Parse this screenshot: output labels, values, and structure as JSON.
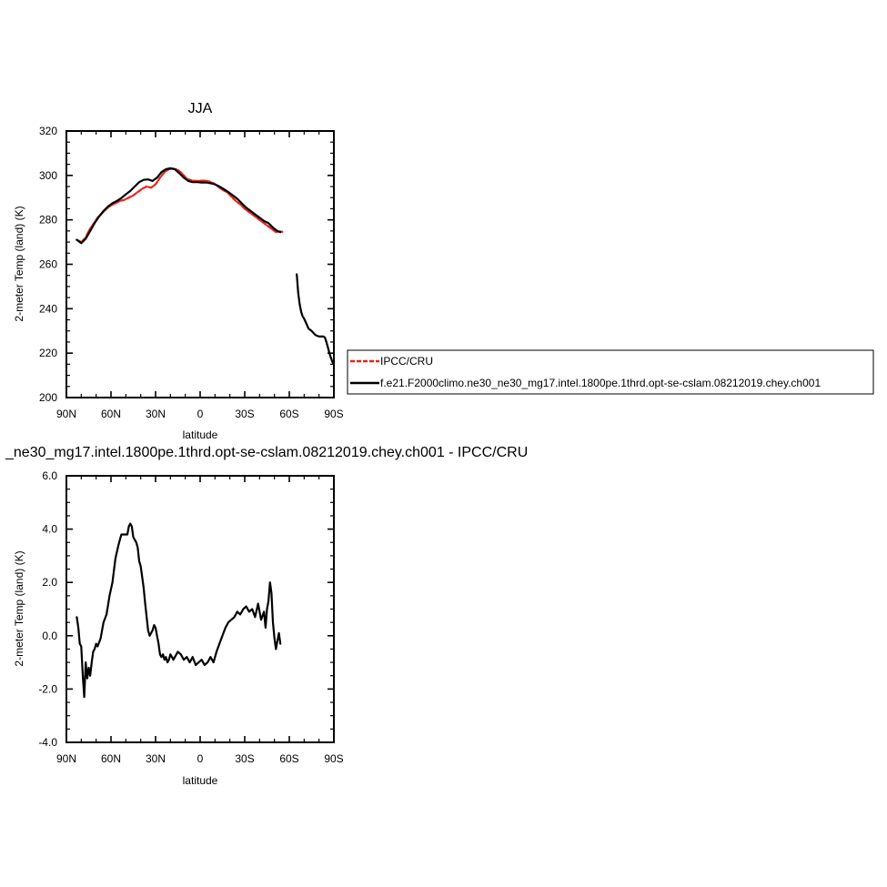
{
  "chart_data": [
    {
      "type": "line",
      "title": "JJA",
      "xlabel": "latitude",
      "ylabel": "2-meter Temp (land) (K)",
      "xlim": [
        90,
        -90
      ],
      "ylim": [
        200,
        320
      ],
      "x_ticks": [
        90,
        60,
        30,
        0,
        -30,
        -60,
        -90
      ],
      "x_tick_labels": [
        "90N",
        "60N",
        "30N",
        "0",
        "30S",
        "60S",
        "90S"
      ],
      "y_ticks": [
        200,
        220,
        240,
        260,
        280,
        300,
        320
      ],
      "y_tick_labels": [
        "200",
        "220",
        "240",
        "260",
        "280",
        "300",
        "320"
      ],
      "legend_position": "right",
      "grid": false,
      "series": [
        {
          "name": "IPCC/CRU",
          "color": "#e8221b",
          "dash": "dashed",
          "x": [
            83,
            80,
            77,
            75,
            72,
            69,
            66,
            63,
            60,
            57,
            54,
            51,
            48,
            45,
            42,
            39,
            36,
            33,
            30,
            27,
            24,
            21,
            18,
            15,
            12,
            9,
            6,
            3,
            0,
            -3,
            -6,
            -9,
            -12,
            -15,
            -18,
            -21,
            -24,
            -27,
            -30,
            -33,
            -36,
            -39,
            -42,
            -45,
            -48,
            -51,
            -54,
            -56
          ],
          "values": [
            271,
            270,
            272,
            275,
            278,
            281,
            283,
            285,
            286.5,
            287.5,
            288.5,
            289,
            290,
            291,
            292.5,
            294,
            295,
            294.5,
            296,
            299,
            301.5,
            302.8,
            303,
            302.5,
            300.8,
            298.5,
            297.8,
            297.5,
            297.6,
            297.7,
            297.3,
            296.5,
            295,
            293.5,
            292.5,
            290.5,
            288.5,
            287,
            285,
            283.5,
            282,
            280.5,
            279,
            277.5,
            276,
            274.5,
            274.8,
            274.5
          ]
        },
        {
          "name": "f.e21.F2000climo.ne30_ne30_mg17.intel.1800pe.1thrd.opt-se-cslam.08212019.chey.ch001",
          "color": "#000000",
          "dash": "solid",
          "x": [
            83,
            80,
            77,
            74,
            71,
            68,
            65,
            62,
            59,
            56,
            53,
            50,
            47,
            44,
            41,
            38,
            35,
            32,
            29,
            26,
            23,
            20,
            17,
            14,
            11,
            8,
            5,
            2,
            -1,
            -4,
            -7,
            -10,
            -13,
            -16,
            -19,
            -22,
            -25,
            -28,
            -31,
            -34,
            -37,
            -40,
            -43,
            -46,
            -49,
            -52,
            -54
          ],
          "values": [
            271,
            269.5,
            271.5,
            275,
            278.5,
            281.5,
            284,
            286,
            287.5,
            288.5,
            289.8,
            291.5,
            293,
            295,
            297,
            298,
            298.2,
            297.5,
            299,
            301.5,
            302.8,
            303.2,
            302.8,
            301,
            299,
            297.5,
            297,
            297,
            296.8,
            296.8,
            296.5,
            296,
            295,
            293.8,
            292.5,
            291,
            289.5,
            287.5,
            285.5,
            284,
            282.5,
            281,
            279.5,
            278.5,
            276.5,
            275,
            274.5
          ]
        },
        {
          "name": "",
          "color": "#000000",
          "dash": "solid",
          "x": [
            -65,
            -66,
            -67,
            -68,
            -69,
            -70,
            -71,
            -73,
            -75,
            -77,
            -78,
            -80,
            -82,
            -83,
            -84,
            -85,
            -86,
            -87,
            -88,
            -89,
            -90
          ],
          "values": [
            255.5,
            247,
            242,
            238.5,
            236.5,
            235.5,
            234,
            231,
            230,
            228.5,
            228,
            227.5,
            227.5,
            227.5,
            227,
            225,
            222.5,
            220,
            218,
            216,
            215
          ]
        }
      ]
    },
    {
      "type": "line",
      "title": "_ne30_mg17.intel.1800pe.1thrd.opt-se-cslam.08212019.chey.ch001 - IPCC/CRU",
      "xlabel": "latitude",
      "ylabel": "2-meter Temp (land) (K)",
      "xlim": [
        90,
        -90
      ],
      "ylim": [
        -4.0,
        6.0
      ],
      "x_ticks": [
        90,
        60,
        30,
        0,
        -30,
        -60,
        -90
      ],
      "x_tick_labels": [
        "90N",
        "60N",
        "30N",
        "0",
        "30S",
        "60S",
        "90S"
      ],
      "y_ticks": [
        -4.0,
        -2.0,
        0.0,
        2.0,
        4.0,
        6.0
      ],
      "y_tick_labels": [
        "-4.0",
        "-2.0",
        "0.0",
        "2.0",
        "4.0",
        "6.0"
      ],
      "grid": false,
      "series": [
        {
          "name": "",
          "color": "#000000",
          "dash": "solid",
          "x": [
            83,
            82,
            81,
            80,
            79,
            78,
            77,
            76,
            75,
            74,
            73,
            72,
            71,
            70,
            69,
            67,
            65,
            63,
            61,
            59,
            57,
            55,
            53,
            51,
            49,
            48,
            47,
            46,
            45,
            44,
            43,
            42,
            41,
            40,
            39,
            38,
            37,
            36,
            35,
            34,
            33,
            32,
            31,
            30,
            29,
            28,
            27,
            26,
            25,
            24,
            23,
            22,
            21,
            20,
            19,
            18,
            17,
            15,
            13,
            11,
            9,
            7,
            5,
            3,
            1,
            -1,
            -3,
            -5,
            -7,
            -9,
            -11,
            -13,
            -15,
            -17,
            -19,
            -21,
            -23,
            -25,
            -27,
            -29,
            -31,
            -33,
            -35,
            -37,
            -39,
            -41,
            -43,
            -44,
            -45,
            -46,
            -47,
            -48,
            -49,
            -50,
            -51,
            -52,
            -53,
            -54
          ],
          "values": [
            0.7,
            0.3,
            -0.3,
            -0.4,
            -1.5,
            -2.3,
            -1.0,
            -1.6,
            -1.2,
            -1.5,
            -1.0,
            -0.6,
            -0.5,
            -0.3,
            -0.4,
            -0.1,
            0.5,
            0.8,
            1.5,
            2.0,
            2.9,
            3.4,
            3.8,
            3.8,
            3.8,
            4.1,
            4.2,
            4.1,
            3.7,
            3.6,
            3.5,
            3.3,
            2.8,
            2.6,
            2.2,
            1.8,
            1.2,
            0.7,
            0.2,
            0.0,
            0.1,
            0.2,
            0.4,
            0.3,
            0.0,
            -0.3,
            -0.7,
            -0.8,
            -0.7,
            -0.9,
            -0.8,
            -1.0,
            -0.9,
            -0.7,
            -0.8,
            -0.9,
            -0.8,
            -0.6,
            -0.7,
            -0.9,
            -0.8,
            -1.0,
            -0.8,
            -1.1,
            -1.0,
            -0.9,
            -1.1,
            -1.0,
            -0.8,
            -1.0,
            -0.6,
            -0.3,
            0.0,
            0.3,
            0.5,
            0.6,
            0.7,
            0.9,
            0.8,
            1.0,
            1.1,
            0.9,
            1.0,
            0.7,
            1.2,
            0.6,
            0.9,
            0.3,
            1.0,
            1.3,
            2.0,
            1.6,
            0.5,
            -0.1,
            -0.5,
            -0.2,
            0.1,
            -0.3
          ]
        }
      ]
    }
  ]
}
